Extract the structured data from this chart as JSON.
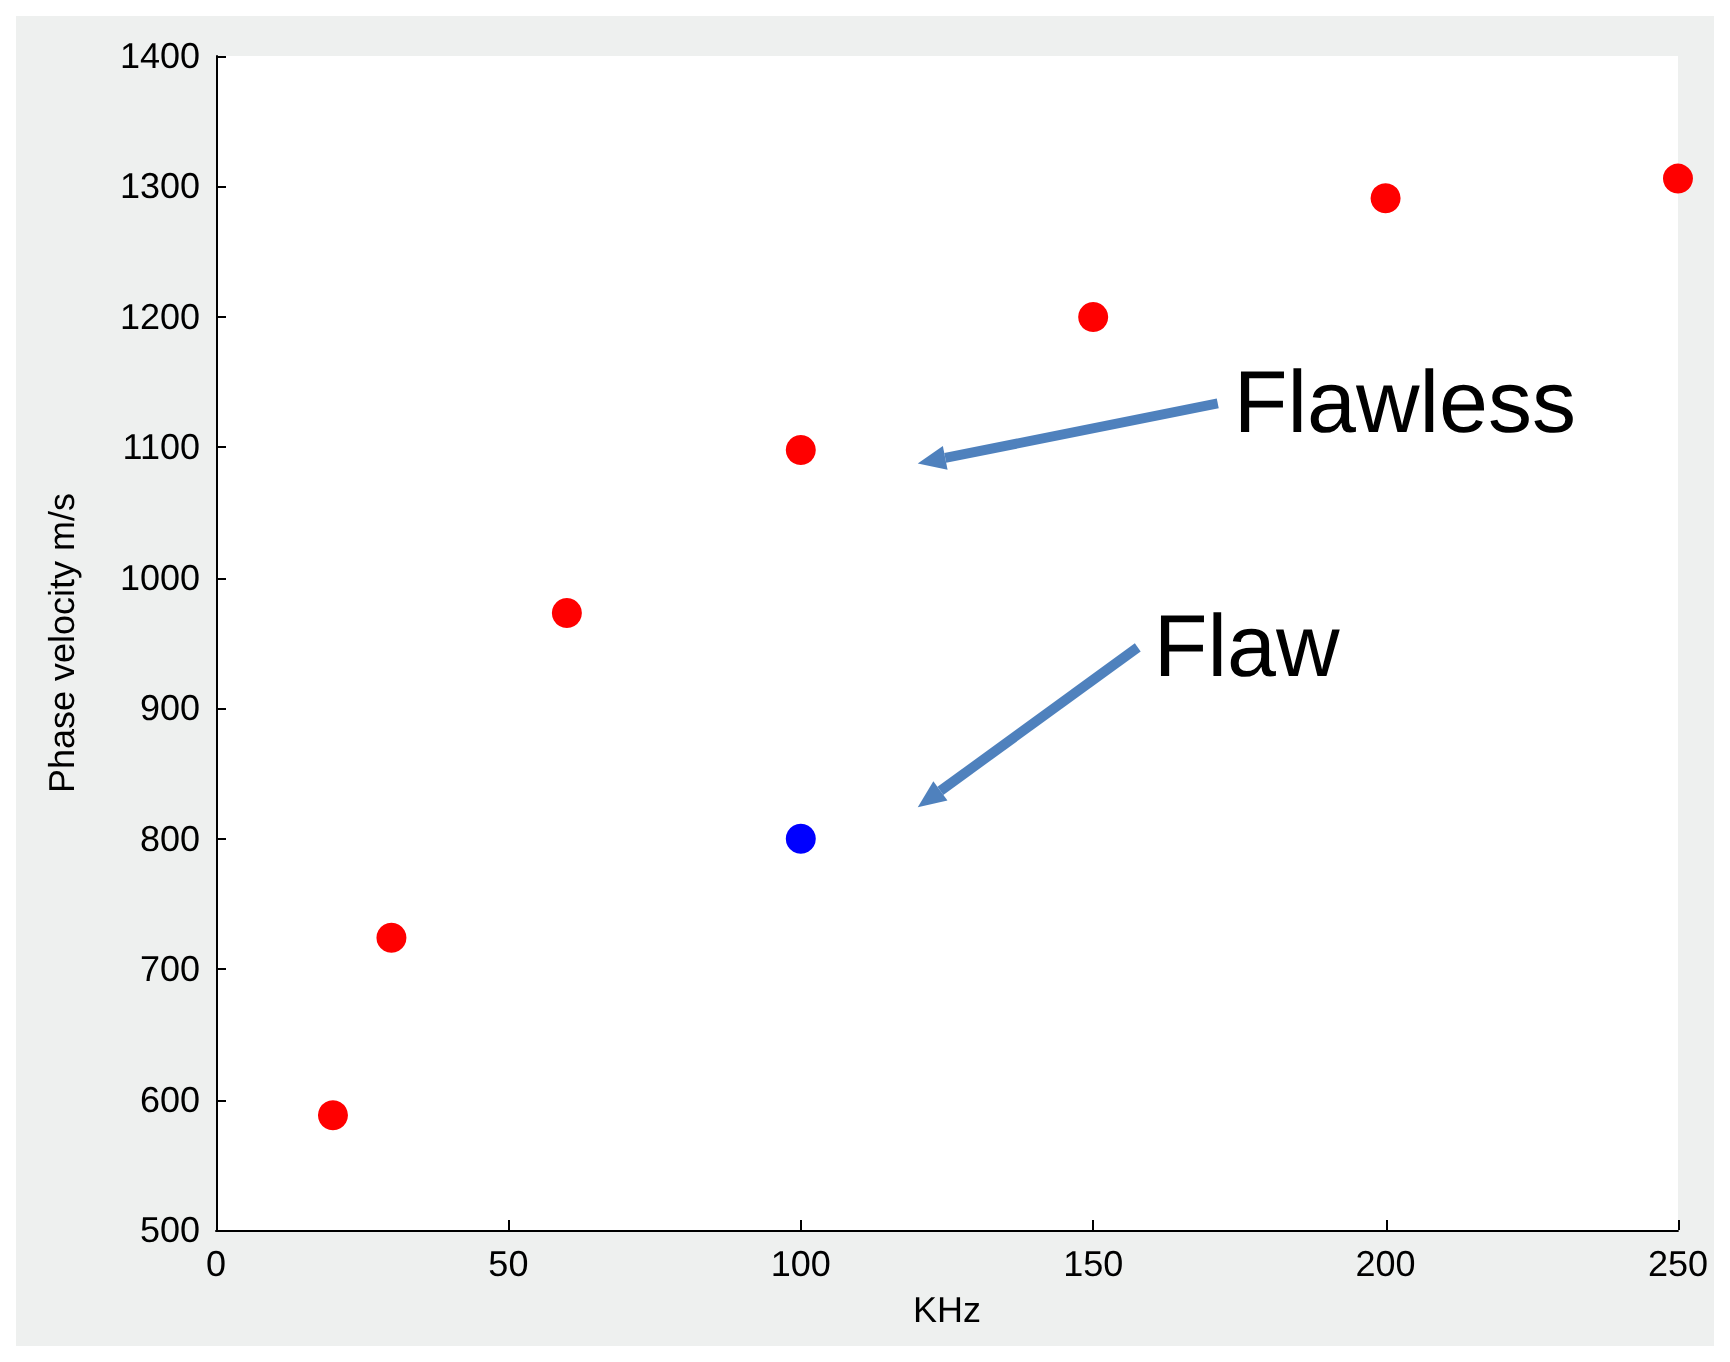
{
  "chart_data": {
    "type": "scatter",
    "xlabel": "KHz",
    "ylabel": "Phase velocity m/s",
    "xlim": [
      0,
      250
    ],
    "xticks": [
      0,
      50,
      100,
      150,
      200,
      250
    ],
    "ylim": [
      500,
      1400
    ],
    "yticks": [
      500,
      600,
      700,
      800,
      900,
      1000,
      1100,
      1200,
      1300,
      1400
    ],
    "series": [
      {
        "color": "#ff0000",
        "x": [
          20,
          30,
          60,
          100,
          150,
          200,
          250
        ],
        "values": [
          588,
          724,
          973,
          1098,
          1200,
          1291,
          1306
        ]
      },
      {
        "color": "#0000ff",
        "x": [
          100
        ],
        "values": [
          800
        ]
      }
    ],
    "annotations": [
      "Flawless",
      "Flaw"
    ],
    "marker": "circle",
    "grid": false
  }
}
